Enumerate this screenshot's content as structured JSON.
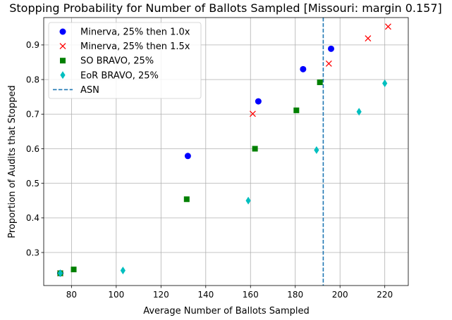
{
  "chart_data": {
    "type": "scatter",
    "title": "Stopping Probability for Number of Ballots Sampled [Missouri: margin 0.157]",
    "xlabel": "Average Number of Ballots Sampled",
    "ylabel": "Proportion of Audits that Stopped",
    "xlim": [
      67.6,
      230.5
    ],
    "ylim": [
      0.2045,
      0.9791
    ],
    "xticks": [
      80,
      100,
      120,
      140,
      160,
      180,
      200,
      220
    ],
    "yticks": [
      0.3,
      0.4,
      0.5,
      0.6,
      0.7,
      0.8,
      0.9
    ],
    "grid": true,
    "legend_position": "top-left",
    "series": [
      {
        "name": "Minerva, 25% then 1.0x",
        "marker": "circle",
        "color": "#0000ff",
        "points": [
          [
            75,
            0.24
          ],
          [
            132,
            0.579
          ],
          [
            163.5,
            0.737
          ],
          [
            183.5,
            0.83
          ],
          [
            196,
            0.889
          ]
        ]
      },
      {
        "name": "Minerva, 25% then 1.5x",
        "marker": "x",
        "color": "#ff0000",
        "points": [
          [
            75,
            0.24
          ],
          [
            161,
            0.701
          ],
          [
            195,
            0.846
          ],
          [
            212.5,
            0.919
          ],
          [
            221.5,
            0.953
          ]
        ]
      },
      {
        "name": "SO BRAVO, 25%",
        "marker": "square",
        "color": "#008000",
        "points": [
          [
            75,
            0.24
          ],
          [
            81,
            0.251
          ],
          [
            131.5,
            0.454
          ],
          [
            162,
            0.6
          ],
          [
            180.5,
            0.711
          ],
          [
            191,
            0.792
          ]
        ]
      },
      {
        "name": "EoR BRAVO, 25%",
        "marker": "diamond",
        "color": "#00bfbf",
        "points": [
          [
            75,
            0.24
          ],
          [
            103,
            0.248
          ],
          [
            159,
            0.45
          ],
          [
            189.5,
            0.596
          ],
          [
            208.5,
            0.707
          ],
          [
            220,
            0.789
          ]
        ]
      }
    ],
    "asn": {
      "name": "ASN",
      "x": 192.5,
      "color": "#1f77b4",
      "style": "dashed"
    }
  }
}
